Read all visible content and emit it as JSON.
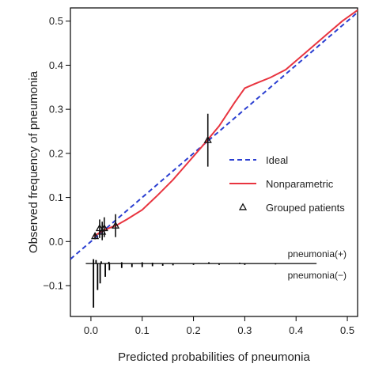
{
  "chart_data": {
    "type": "line",
    "xlabel": "Predicted probabilities of pneumonia",
    "ylabel": "Observed frequency of pneumonia",
    "xlim": [
      -0.04,
      0.52
    ],
    "ylim": [
      -0.17,
      0.53
    ],
    "x_ticks": [
      0.0,
      0.1,
      0.2,
      0.3,
      0.4,
      0.5
    ],
    "x_tick_labels": [
      "0.0",
      "0.1",
      "0.2",
      "0.3",
      "0.4",
      "0.5"
    ],
    "y_ticks": [
      -0.1,
      0.0,
      0.1,
      0.2,
      0.3,
      0.4,
      0.5
    ],
    "y_tick_labels": [
      "−0.1",
      "0.0",
      "0.1",
      "0.2",
      "0.3",
      "0.4",
      "0.5"
    ],
    "grid": false,
    "legend_position": "center-right",
    "colors": {
      "ideal": "#2b3fd1",
      "nonparametric": "#e8343f",
      "grouped": "#111111"
    },
    "series": [
      {
        "name": "Ideal",
        "style": "dashed",
        "x": [
          -0.04,
          0.52
        ],
        "y": [
          -0.04,
          0.52
        ]
      },
      {
        "name": "Nonparametric",
        "style": "solid",
        "x": [
          0.005,
          0.01,
          0.02,
          0.03,
          0.05,
          0.07,
          0.1,
          0.13,
          0.16,
          0.19,
          0.22,
          0.25,
          0.28,
          0.3,
          0.32,
          0.35,
          0.38,
          0.4,
          0.43,
          0.46,
          0.49,
          0.52
        ],
        "y": [
          0.012,
          0.015,
          0.022,
          0.028,
          0.037,
          0.05,
          0.072,
          0.105,
          0.14,
          0.18,
          0.22,
          0.262,
          0.315,
          0.348,
          0.358,
          0.372,
          0.39,
          0.41,
          0.44,
          0.47,
          0.5,
          0.525
        ]
      },
      {
        "name": "Grouped patients",
        "style": "markers",
        "points": [
          {
            "x": 0.008,
            "y": 0.012,
            "lo": 0.005,
            "hi": 0.02
          },
          {
            "x": 0.017,
            "y": 0.03,
            "lo": 0.008,
            "hi": 0.05
          },
          {
            "x": 0.022,
            "y": 0.022,
            "lo": 0.003,
            "hi": 0.045
          },
          {
            "x": 0.026,
            "y": 0.03,
            "lo": 0.01,
            "hi": 0.055
          },
          {
            "x": 0.048,
            "y": 0.036,
            "lo": 0.01,
            "hi": 0.062
          },
          {
            "x": 0.228,
            "y": 0.23,
            "lo": 0.17,
            "hi": 0.29
          }
        ]
      }
    ],
    "spike_histogram": {
      "positive_label": "pneumonia(+)",
      "negative_label": "pneumonia(−)",
      "baseline_y": -0.05,
      "range": [
        -0.01,
        0.44
      ],
      "positive": [
        {
          "x": 0.005,
          "h": 0.01
        },
        {
          "x": 0.01,
          "h": 0.008
        },
        {
          "x": 0.02,
          "h": 0.005
        },
        {
          "x": 0.035,
          "h": 0.004
        },
        {
          "x": 0.06,
          "h": 0.003
        },
        {
          "x": 0.1,
          "h": 0.003
        },
        {
          "x": 0.12,
          "h": 0.002
        },
        {
          "x": 0.23,
          "h": 0.003
        },
        {
          "x": 0.29,
          "h": 0.002
        }
      ],
      "negative": [
        {
          "x": 0.005,
          "h": 0.1
        },
        {
          "x": 0.013,
          "h": 0.06
        },
        {
          "x": 0.018,
          "h": 0.045
        },
        {
          "x": 0.028,
          "h": 0.03
        },
        {
          "x": 0.036,
          "h": 0.015
        },
        {
          "x": 0.06,
          "h": 0.01
        },
        {
          "x": 0.08,
          "h": 0.008
        },
        {
          "x": 0.1,
          "h": 0.008
        },
        {
          "x": 0.12,
          "h": 0.006
        },
        {
          "x": 0.14,
          "h": 0.005
        },
        {
          "x": 0.16,
          "h": 0.004
        },
        {
          "x": 0.2,
          "h": 0.003
        },
        {
          "x": 0.25,
          "h": 0.003
        },
        {
          "x": 0.3,
          "h": 0.003
        },
        {
          "x": 0.36,
          "h": 0.002
        }
      ]
    }
  }
}
